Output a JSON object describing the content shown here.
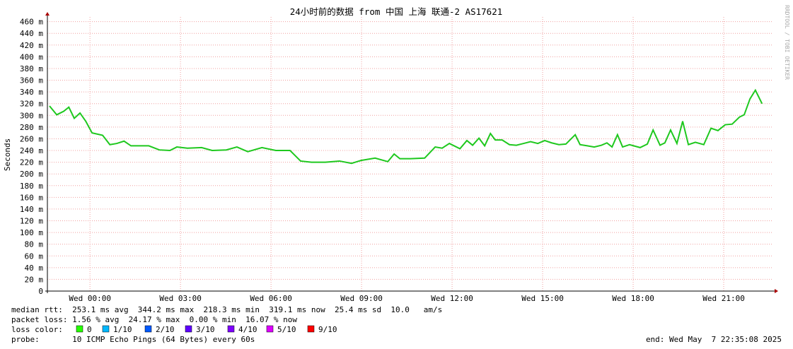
{
  "chart_data": {
    "type": "line",
    "title": "24小时前的数据 from 中国 上海 联通-2 AS17621",
    "y_label": "Seconds",
    "side_text": "RRDTOOL / TOBI OETIKER",
    "x": [
      -1.34,
      -1.1,
      -0.87,
      -0.7,
      -0.52,
      -0.33,
      -0.14,
      0.07,
      0.42,
      0.66,
      0.89,
      1.13,
      1.36,
      1.71,
      1.95,
      2.3,
      2.65,
      2.88,
      3.23,
      3.7,
      4.05,
      4.52,
      4.87,
      5.23,
      5.7,
      6.16,
      6.63,
      6.98,
      7.34,
      7.8,
      8.27,
      8.67,
      8.98,
      9.45,
      9.87,
      10.08,
      10.27,
      10.62,
      11.09,
      11.44,
      11.67,
      11.91,
      12.26,
      12.49,
      12.68,
      12.89,
      13.08,
      13.27,
      13.43,
      13.66,
      13.9,
      14.13,
      14.37,
      14.6,
      14.84,
      15.07,
      15.3,
      15.54,
      15.77,
      16.08,
      16.24,
      16.48,
      16.71,
      16.95,
      17.13,
      17.3,
      17.48,
      17.65,
      17.88,
      18.23,
      18.47,
      18.66,
      18.89,
      19.05,
      19.24,
      19.45,
      19.64,
      19.83,
      20.06,
      20.34,
      20.58,
      20.81,
      21.05,
      21.28,
      21.52,
      21.68,
      21.87,
      22.05,
      22.27
    ],
    "values": [
      0.316,
      0.301,
      0.307,
      0.314,
      0.295,
      0.304,
      0.29,
      0.27,
      0.266,
      0.25,
      0.252,
      0.256,
      0.248,
      0.248,
      0.248,
      0.241,
      0.24,
      0.246,
      0.244,
      0.245,
      0.24,
      0.241,
      0.246,
      0.238,
      0.245,
      0.24,
      0.24,
      0.222,
      0.22,
      0.22,
      0.222,
      0.218,
      0.223,
      0.227,
      0.221,
      0.234,
      0.226,
      0.226,
      0.227,
      0.246,
      0.244,
      0.252,
      0.243,
      0.257,
      0.249,
      0.261,
      0.248,
      0.269,
      0.258,
      0.258,
      0.25,
      0.249,
      0.252,
      0.255,
      0.252,
      0.257,
      0.253,
      0.25,
      0.251,
      0.267,
      0.25,
      0.248,
      0.246,
      0.249,
      0.253,
      0.246,
      0.267,
      0.246,
      0.25,
      0.245,
      0.251,
      0.275,
      0.249,
      0.253,
      0.275,
      0.252,
      0.29,
      0.25,
      0.254,
      0.25,
      0.278,
      0.274,
      0.284,
      0.285,
      0.297,
      0.301,
      0.328,
      0.343,
      0.32
    ],
    "color": "#1ec81e",
    "xlim": [
      -1.41,
      22.64
    ],
    "ylim": [
      0,
      0.468
    ],
    "xticks": [
      {
        "value": 0,
        "label": "Wed 00:00"
      },
      {
        "value": 3,
        "label": "Wed 03:00"
      },
      {
        "value": 6,
        "label": "Wed 06:00"
      },
      {
        "value": 9,
        "label": "Wed 09:00"
      },
      {
        "value": 12,
        "label": "Wed 12:00"
      },
      {
        "value": 15,
        "label": "Wed 15:00"
      },
      {
        "value": 18,
        "label": "Wed 18:00"
      },
      {
        "value": 21,
        "label": "Wed 21:00"
      }
    ],
    "yticks": [
      0,
      {
        "value": 0.02,
        "label": "20 m"
      },
      {
        "value": 0.04,
        "label": "40 m"
      },
      {
        "value": 0.06,
        "label": "60 m"
      },
      {
        "value": 0.08,
        "label": "80 m"
      },
      {
        "value": 0.1,
        "label": "100 m"
      },
      {
        "value": 0.12,
        "label": "120 m"
      },
      {
        "value": 0.14,
        "label": "140 m"
      },
      {
        "value": 0.16,
        "label": "160 m"
      },
      {
        "value": 0.18,
        "label": "180 m"
      },
      {
        "value": 0.2,
        "label": "200 m"
      },
      {
        "value": 0.22,
        "label": "220 m"
      },
      {
        "value": 0.24,
        "label": "240 m"
      },
      {
        "value": 0.26,
        "label": "260 m"
      },
      {
        "value": 0.28,
        "label": "280 m"
      },
      {
        "value": 0.3,
        "label": "300 m"
      },
      {
        "value": 0.32,
        "label": "320 m"
      },
      {
        "value": 0.34,
        "label": "340 m"
      },
      {
        "value": 0.36,
        "label": "360 m"
      },
      {
        "value": 0.38,
        "label": "380 m"
      },
      {
        "value": 0.4,
        "label": "400 m"
      },
      {
        "value": 0.42,
        "label": "420 m"
      },
      {
        "value": 0.44,
        "label": "440 m"
      },
      {
        "value": 0.46,
        "label": "460 m"
      }
    ],
    "grid": true,
    "stats": [
      "median rtt:  253.1 ms avg  344.2 ms max  218.3 ms min  319.1 ms now  25.4 ms sd  10.0   am/s",
      "packet loss: 1.56 % avg  24.17 % max  0.00 % min  16.07 % now"
    ],
    "loss_legend_title": "loss color:",
    "loss_colors": [
      {
        "name": "0",
        "color": "#26ff00"
      },
      {
        "name": "1/10",
        "color": "#00b8ff"
      },
      {
        "name": "2/10",
        "color": "#0059ff"
      },
      {
        "name": "3/10",
        "color": "#5e00ff"
      },
      {
        "name": "4/10",
        "color": "#7e00ff"
      },
      {
        "name": "5/10",
        "color": "#dd00ff"
      },
      {
        "name": "9/10",
        "color": "#ff0000"
      }
    ],
    "probe": "probe:       10 ICMP Echo Pings (64 Bytes) every 60s",
    "end": "end: Wed May  7 22:35:08 2025"
  }
}
